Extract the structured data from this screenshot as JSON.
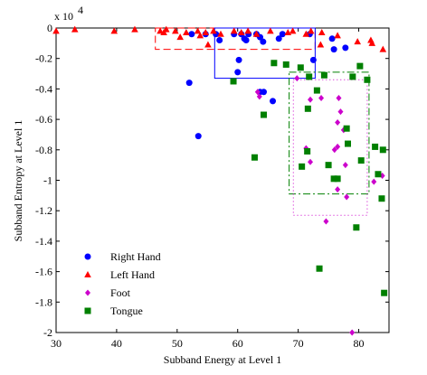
{
  "chart_data": {
    "type": "scatter",
    "x_label": "Subband Energy at Level 1",
    "y_label": "Subband Entropy at Level 1",
    "y_scale_base": "x 10",
    "y_scale_exponent": "4",
    "xlim": [
      30,
      85
    ],
    "ylim": [
      -2,
      0
    ],
    "xticks": [
      30,
      40,
      50,
      60,
      70,
      80
    ],
    "yticks": [
      0,
      -0.2,
      -0.4,
      -0.6,
      -0.8,
      -1,
      -1.2,
      -1.4,
      -1.6,
      -1.8,
      -2
    ],
    "legend": "lower left",
    "series": [
      {
        "name": "Right Hand",
        "color": "#0000ff",
        "marker": "circle",
        "x": [
          52.4,
          54.7,
          56.4,
          57.0,
          59.4,
          60.6,
          61.1,
          61.4,
          61.8,
          63.1,
          63.7,
          64.2,
          66.8,
          67.4,
          71.9,
          75.6,
          75.9,
          77.8,
          63.7,
          64.3,
          65.8,
          60.2,
          60.0,
          52.0,
          53.5,
          72.5
        ],
        "y": [
          -0.04,
          -0.04,
          -0.04,
          -0.08,
          -0.04,
          -0.04,
          -0.07,
          -0.08,
          -0.04,
          -0.04,
          -0.06,
          -0.09,
          -0.07,
          -0.04,
          -0.04,
          -0.07,
          -0.14,
          -0.13,
          -0.42,
          -0.42,
          -0.48,
          -0.21,
          -0.29,
          -0.36,
          -0.71,
          -0.21
        ]
      },
      {
        "name": "Left Hand",
        "color": "#ff0000",
        "marker": "triangle",
        "x": [
          30.0,
          33.1,
          39.6,
          43.0,
          47.2,
          47.8,
          48.2,
          49.7,
          51.5,
          53.4,
          53.8,
          54.7,
          56.0,
          57.2,
          59.4,
          60.6,
          61.7,
          63.1,
          65.4,
          68.3,
          69.1,
          71.3,
          72.1,
          73.9,
          76.5,
          79.8,
          82.0,
          82.2,
          84.0,
          50.5,
          55.1,
          73.7
        ],
        "y": [
          -0.02,
          -0.01,
          -0.02,
          -0.01,
          -0.02,
          -0.03,
          -0.01,
          -0.02,
          -0.03,
          -0.02,
          -0.05,
          -0.03,
          -0.02,
          -0.04,
          -0.02,
          -0.03,
          -0.02,
          -0.04,
          -0.02,
          -0.03,
          -0.02,
          -0.04,
          -0.02,
          -0.03,
          -0.05,
          -0.09,
          -0.08,
          -0.1,
          -0.14,
          -0.06,
          -0.11,
          -0.11
        ]
      },
      {
        "name": "Foot",
        "color": "#cc00cc",
        "marker": "diamond",
        "x": [
          63.3,
          63.6,
          69.8,
          73.8,
          72.0,
          76.7,
          76.5,
          77.5,
          76.0,
          71.3,
          72.0,
          76.5,
          77.8,
          76.5,
          78.0,
          74.6,
          83.9,
          78.9,
          82.5,
          77.0
        ],
        "y": [
          -0.42,
          -0.45,
          -0.33,
          -0.46,
          -0.47,
          -0.46,
          -0.62,
          -0.67,
          -0.8,
          -0.79,
          -0.88,
          -0.78,
          -0.9,
          -1.06,
          -1.11,
          -1.27,
          -0.97,
          -2.0,
          -1.01,
          -0.55
        ]
      },
      {
        "name": "Tongue",
        "color": "#008000",
        "marker": "square",
        "x": [
          66.0,
          68.0,
          70.4,
          59.3,
          64.3,
          62.8,
          71.8,
          73.1,
          74.3,
          80.2,
          81.4,
          79.0,
          71.6,
          71.5,
          70.6,
          75.0,
          75.9,
          76.5,
          78.0,
          78.2,
          80.4,
          82.7,
          84.0,
          83.2,
          83.8,
          79.6,
          73.5,
          84.2
        ],
        "y": [
          -0.23,
          -0.24,
          -0.26,
          -0.35,
          -0.57,
          -0.85,
          -0.32,
          -0.41,
          -0.31,
          -0.25,
          -0.34,
          -0.32,
          -0.53,
          -0.81,
          -0.91,
          -0.9,
          -0.99,
          -0.99,
          -0.66,
          -0.76,
          -0.87,
          -0.78,
          -0.8,
          -0.96,
          -1.12,
          -1.31,
          -1.58,
          -1.74
        ]
      }
    ],
    "regions": [
      {
        "color": "#ff0000",
        "dash": "8,4",
        "x": [
          46.4,
          72.8
        ],
        "y": [
          0,
          -0.14
        ]
      },
      {
        "color": "#0000ff",
        "dash": "none",
        "x": [
          56.2,
          72.8
        ],
        "y": [
          0,
          -0.33
        ]
      },
      {
        "color": "#008000",
        "dash": "8,3,2,3",
        "x": [
          68.5,
          81.7
        ],
        "y": [
          -0.29,
          -1.09
        ]
      },
      {
        "color": "#cc00cc",
        "dash": "1,3",
        "x": [
          69.2,
          81.4
        ],
        "y": [
          -0.34,
          -1.23
        ]
      }
    ]
  }
}
